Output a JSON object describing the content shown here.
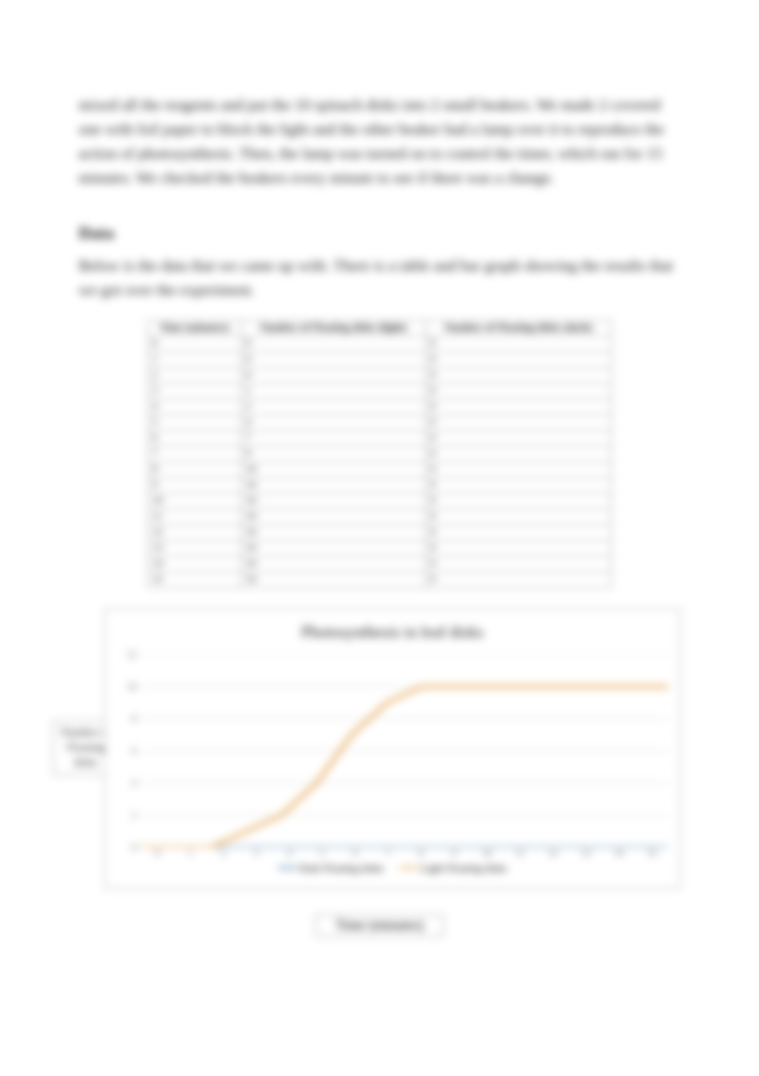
{
  "paragraph_intro": "mixed all the reagents and put the 10 spinach disks into 2 small beakers. We made 2 covered one with foil paper to block the light and the other beaker had a lamp over it to reproduce the action of photosynthesis. Then, the lamp was turned on to control the timer, which ran for 15 minutes. We checked the beakers every minute to see if there was a change.",
  "data_section": {
    "heading": "Data",
    "body": "Below is the data that we came up with. There is a table and bar graph showing the results that we got over the experiment."
  },
  "table": {
    "columns": [
      "Time (minutes)",
      "Number of Floating disks (light)",
      "Number of Floating disks (dark)"
    ],
    "rows": [
      [
        "0",
        "0",
        "0"
      ],
      [
        "1",
        "0",
        "0"
      ],
      [
        "2",
        "0",
        "0"
      ],
      [
        "3",
        "1",
        "0"
      ],
      [
        "4",
        "2",
        "0"
      ],
      [
        "5",
        "4",
        "0"
      ],
      [
        "6",
        "7",
        "0"
      ],
      [
        "7",
        "9",
        "0"
      ],
      [
        "8",
        "10",
        "0"
      ],
      [
        "9",
        "10",
        "0"
      ],
      [
        "10",
        "10",
        "0"
      ],
      [
        "11",
        "10",
        "0"
      ],
      [
        "12",
        "10",
        "0"
      ],
      [
        "13",
        "10",
        "0"
      ],
      [
        "14",
        "10",
        "0"
      ],
      [
        "15",
        "10",
        "0"
      ]
    ]
  },
  "chart": {
    "type": "line",
    "title": "Photosynthesis in leaf disks",
    "y_ticks": [
      0,
      2,
      4,
      6,
      8,
      10,
      12
    ],
    "ylim": [
      0,
      12
    ],
    "x_labels": [
      "0",
      "1",
      "2",
      "3",
      "4",
      "5",
      "6",
      "7",
      "8",
      "9",
      "10",
      "11",
      "12",
      "13",
      "14",
      "15"
    ],
    "series": [
      {
        "name": "Light Floating disks",
        "color": "#e4a24c",
        "line_width": 4,
        "values": [
          0,
          0,
          0,
          1,
          2,
          4,
          7,
          9,
          10,
          10,
          10,
          10,
          10,
          10,
          10,
          10
        ]
      },
      {
        "name": "Dark Floating disks",
        "color": "#4a7fb2",
        "line_width": 3,
        "values": [
          0,
          0,
          0,
          0,
          0,
          0,
          0,
          0,
          0,
          0,
          0,
          0,
          0,
          0,
          0,
          0
        ]
      }
    ],
    "y_axis_title": "Number of Floating disks",
    "x_axis_title": "Time (minutes)",
    "grid_color": "#d0d0d0",
    "background_color": "#ffffff",
    "legend_swatch_dark_color": "#4a7fb2",
    "legend_swatch_light_color": "#e4a24c",
    "legend_label_dark": "Dark Floating disks",
    "legend_label_light": "Light Floating disks"
  }
}
